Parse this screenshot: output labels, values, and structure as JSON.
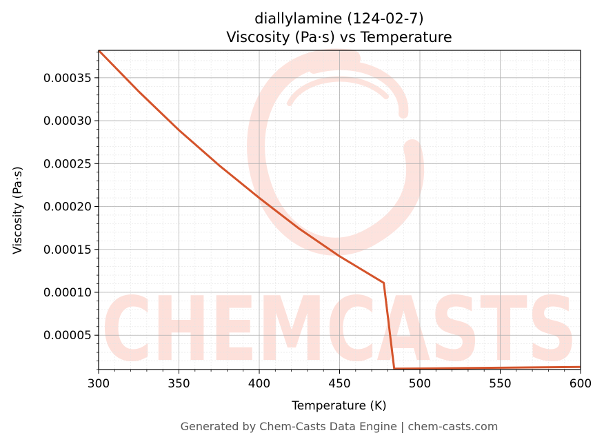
{
  "chart_data": {
    "type": "line",
    "title": "diallylamine (124-02-7)",
    "subtitle": "Viscosity (Pa·s) vs Temperature",
    "xlabel": "Temperature (K)",
    "ylabel": "Viscosity (Pa·s)",
    "xlim": [
      300,
      600
    ],
    "ylim": [
      1e-05,
      0.000382
    ],
    "xticks": [
      300,
      350,
      400,
      450,
      500,
      550,
      600
    ],
    "xtick_labels": [
      "300",
      "350",
      "400",
      "450",
      "500",
      "550",
      "600"
    ],
    "yticks": [
      5e-05,
      0.0001,
      0.00015,
      0.0002,
      0.00025,
      0.0003,
      0.00035
    ],
    "ytick_labels": [
      "0.00005",
      "0.00010",
      "0.00015",
      "0.00020",
      "0.00025",
      "0.00030",
      "0.00035"
    ],
    "grid": true,
    "color": "#d4532a",
    "series": [
      {
        "x": [
          300,
          325,
          350,
          375,
          400,
          425,
          450,
          477.5,
          484,
          500,
          550,
          600
        ],
        "y": [
          0.000382,
          0.000334,
          0.000289,
          0.000248,
          0.00021,
          0.000174,
          0.000142,
          0.000111,
          1.1e-05,
          1.12e-05,
          1.21e-05,
          1.3e-05
        ]
      }
    ]
  },
  "watermark": {
    "text": "CHEMCASTS",
    "color": "#fde0da"
  },
  "footer": "Generated by Chem-Casts Data Engine | chem-casts.com"
}
